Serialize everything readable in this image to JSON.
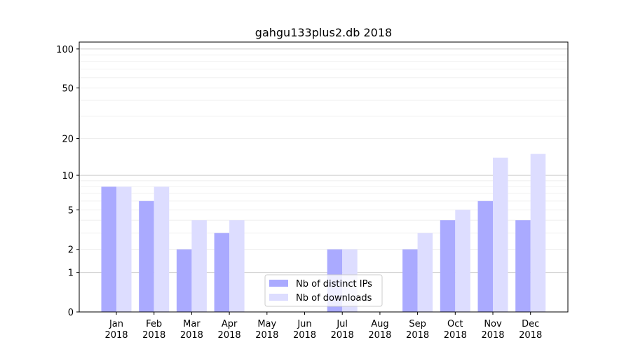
{
  "chart_data": {
    "type": "bar",
    "title": "gahgu133plus2.db 2018",
    "xlabel": "",
    "ylabel": "",
    "yscale": "log(1+y)",
    "ylim": [
      0,
      113
    ],
    "yticks": [
      0,
      1,
      2,
      5,
      10,
      20,
      50,
      100
    ],
    "grid": true,
    "legend_position": "lower-center",
    "categories": [
      "Jan\n2018",
      "Feb\n2018",
      "Mar\n2018",
      "Apr\n2018",
      "May\n2018",
      "Jun\n2018",
      "Jul\n2018",
      "Aug\n2018",
      "Sep\n2018",
      "Oct\n2018",
      "Nov\n2018",
      "Dec\n2018"
    ],
    "series": [
      {
        "name": "Nb of distinct IPs",
        "color": "#aaaaff",
        "values": [
          8,
          6,
          2,
          3,
          0,
          0,
          2,
          0,
          2,
          4,
          6,
          4
        ]
      },
      {
        "name": "Nb of downloads",
        "color": "#ddddff",
        "values": [
          8,
          8,
          4,
          4,
          0,
          0,
          2,
          0,
          3,
          5,
          14,
          15
        ]
      }
    ]
  }
}
